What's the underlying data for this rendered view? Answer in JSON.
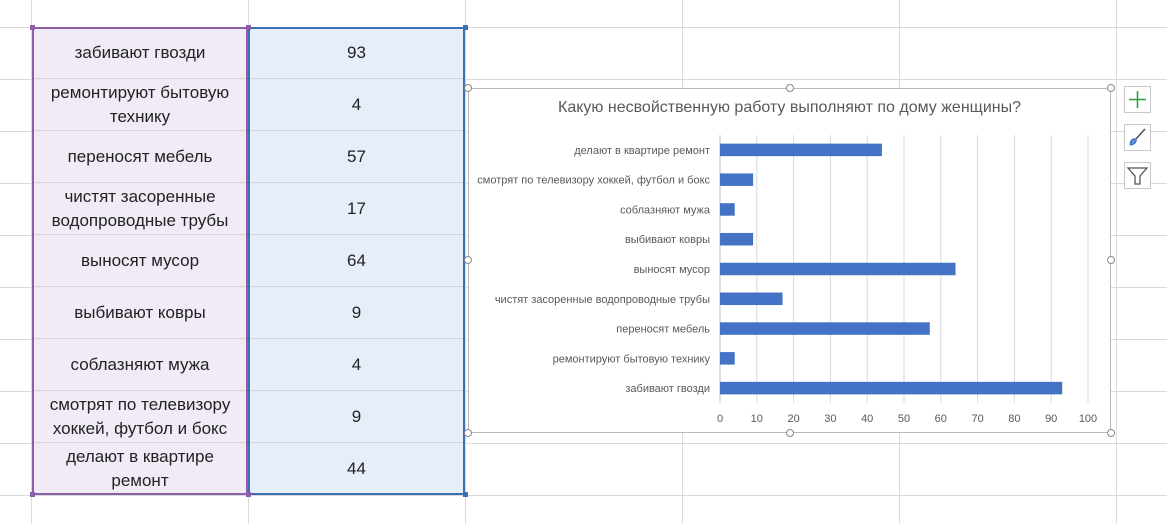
{
  "table": {
    "rows": [
      {
        "label": "забивают гвозди",
        "value": "93"
      },
      {
        "label": "ремонтируют бытовую технику",
        "value": "4"
      },
      {
        "label": "переносят мебель",
        "value": "57"
      },
      {
        "label": "чистят засоренные водопроводные трубы",
        "value": "17"
      },
      {
        "label": "выносят мусор",
        "value": "64"
      },
      {
        "label": "выбивают ковры",
        "value": "9"
      },
      {
        "label": "соблазняют мужа",
        "value": "4"
      },
      {
        "label": "смотрят по телевизору хоккей, футбол и бокс",
        "value": "9"
      },
      {
        "label": "делают в квартире ремонт",
        "value": "44"
      }
    ]
  },
  "chart_data": {
    "type": "bar",
    "orientation": "horizontal",
    "title": "Какую несвойственную работу выполняют по дому женщины?",
    "categories": [
      "делают в квартире ремонт",
      "смотрят по телевизору хоккей, футбол и бокс",
      "соблазняют мужа",
      "выбивают ковры",
      "выносят мусор",
      "чистят засоренные водопроводные трубы",
      "переносят мебель",
      "ремонтируют бытовую технику",
      "забивают гвозди"
    ],
    "values": [
      44,
      9,
      4,
      9,
      64,
      17,
      57,
      4,
      93
    ],
    "xlim": [
      0,
      100
    ],
    "xticks": [
      "0",
      "10",
      "20",
      "30",
      "40",
      "50",
      "60",
      "70",
      "80",
      "90",
      "100"
    ],
    "grid": true,
    "legend": "none",
    "bar_color": "#4472c4"
  },
  "toolbar": {
    "icons": [
      "chart-elements-icon",
      "chart-styles-icon",
      "chart-filters-icon"
    ]
  }
}
